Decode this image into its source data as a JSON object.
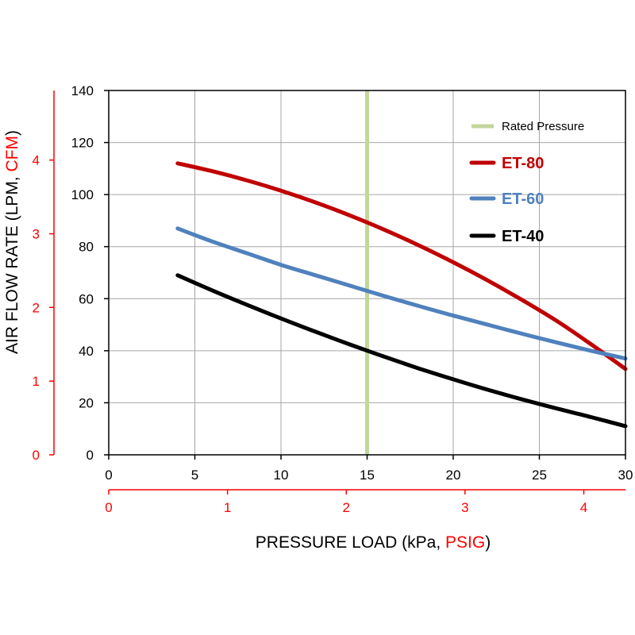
{
  "chart_data": {
    "type": "line",
    "title": "",
    "x": [
      4,
      6,
      8,
      10,
      12,
      14,
      16,
      18,
      20,
      22,
      24,
      26,
      28,
      30
    ],
    "series": [
      {
        "name": "ET-80",
        "color": "#c00000",
        "values": [
          112,
          109,
          105.5,
          101.5,
          97,
          92,
          86.5,
          80.5,
          74,
          67,
          59.5,
          51.5,
          42.5,
          33
        ]
      },
      {
        "name": "ET-60",
        "color": "#4f81bd",
        "values": [
          87,
          82,
          77.5,
          73,
          69,
          65,
          61,
          57.2,
          53.5,
          50,
          46.5,
          43.2,
          40,
          37
        ]
      },
      {
        "name": "ET-40",
        "color": "#000000",
        "values": [
          69,
          63.2,
          57.7,
          52.4,
          47.3,
          42.4,
          37.7,
          33.2,
          29,
          25,
          21.3,
          17.8,
          14.5,
          11
        ]
      }
    ],
    "rated_pressure": {
      "label": "Rated Pressure",
      "x": 15,
      "color": "#c3d69b"
    },
    "xlabel_main": "PRESSURE LOAD (kPa, ",
    "xlabel_alt": "PSIG",
    "xlabel_end": ")",
    "ylabel_main": "AIR FLOW RATE (LPM, ",
    "ylabel_alt": "CFM",
    "ylabel_end": ")",
    "xlim": [
      0,
      30
    ],
    "ylim": [
      0,
      140
    ],
    "x_ticks": [
      "0",
      "5",
      "10",
      "15",
      "20",
      "25",
      "30"
    ],
    "y_ticks": [
      "0",
      "20",
      "40",
      "60",
      "80",
      "100",
      "120",
      "140"
    ],
    "x2_ticks": [
      "0",
      "1",
      "2",
      "3",
      "4"
    ],
    "y2_ticks": [
      "0",
      "1",
      "2",
      "3",
      "4"
    ],
    "x2_per_unit": 6.895,
    "y2_per_unit": 28.317,
    "alt_axis_color": "#ff0000",
    "grid": true
  }
}
